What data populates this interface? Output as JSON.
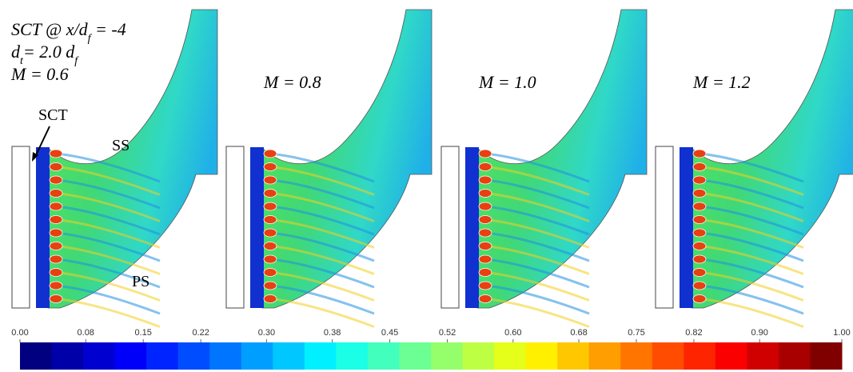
{
  "annotations": {
    "case": [
      "SCT @ x/d",
      "f",
      " = -4"
    ],
    "diameter": [
      "d",
      "t",
      "= 2.0 d",
      "f"
    ],
    "sct": "SCT",
    "ss": "SS",
    "ps": "PS"
  },
  "panels": [
    {
      "label": "M = 0.6"
    },
    {
      "label": "M = 0.8"
    },
    {
      "label": "M = 1.0"
    },
    {
      "label": "M = 1.2"
    }
  ],
  "colorbar": {
    "lim": [
      0,
      1
    ],
    "ticks": [
      {
        "value": 0,
        "label": "0.00"
      },
      {
        "value": 0.08,
        "label": "0.08"
      },
      {
        "value": 0.15,
        "label": "0.15"
      },
      {
        "value": 0.22,
        "label": "0.22"
      },
      {
        "value": 0.3,
        "label": "0.30"
      },
      {
        "value": 0.38,
        "label": "0.38"
      },
      {
        "value": 0.45,
        "label": "0.45"
      },
      {
        "value": 0.52,
        "label": "0.52"
      },
      {
        "value": 0.6,
        "label": "0.60"
      },
      {
        "value": 0.68,
        "label": "0.68"
      },
      {
        "value": 0.75,
        "label": "0.75"
      },
      {
        "value": 0.82,
        "label": "0.82"
      },
      {
        "value": 0.9,
        "label": "0.90"
      },
      {
        "value": 1,
        "label": "1.00"
      }
    ]
  }
}
